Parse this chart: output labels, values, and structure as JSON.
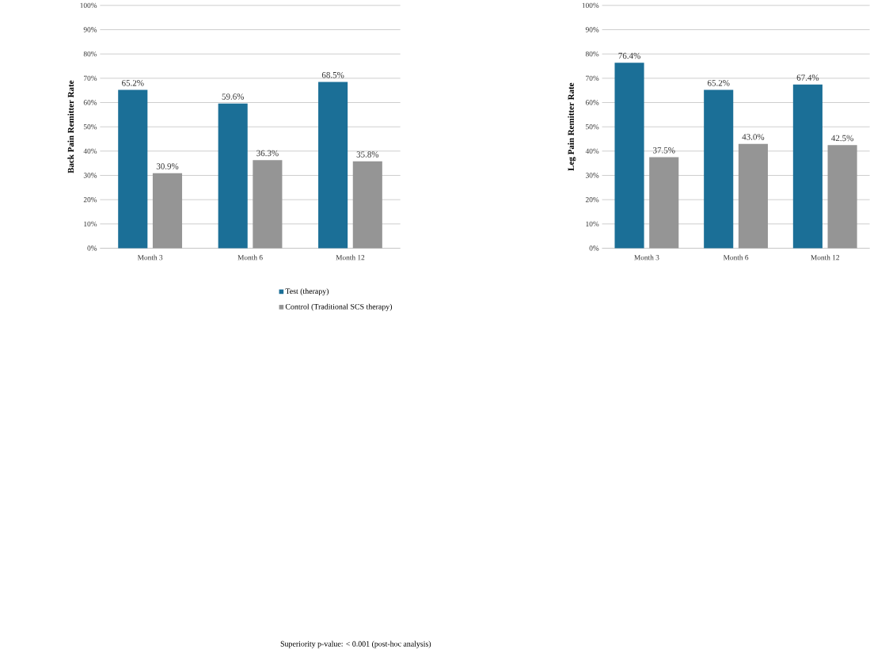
{
  "chart_data": [
    {
      "type": "bar",
      "ylabel": "Back Pain Remitter Rate",
      "categories": [
        "Month 3",
        "Month 6",
        "Month 12"
      ],
      "series": [
        {
          "name": "Test (therapy)",
          "color": "#1b6f97",
          "values": [
            65.2,
            59.6,
            68.5
          ],
          "value_labels": [
            "65.2%",
            "59.6%",
            "68.5%"
          ]
        },
        {
          "name": "Control (Traditional SCS therapy)",
          "color": "#959595",
          "values": [
            30.9,
            36.3,
            35.8
          ],
          "value_labels": [
            "30.9%",
            "36.3%",
            "35.8%"
          ]
        }
      ],
      "ylim": [
        0,
        100
      ],
      "yticks": [
        {
          "value": 0,
          "label": "0%"
        },
        {
          "value": 10,
          "label": "10%"
        },
        {
          "value": 20,
          "label": "20%"
        },
        {
          "value": 30,
          "label": "30%"
        },
        {
          "value": 40,
          "label": "40%"
        },
        {
          "value": 50,
          "label": "50%"
        },
        {
          "value": 60,
          "label": "60%"
        },
        {
          "value": 70,
          "label": "70%"
        },
        {
          "value": 80,
          "label": "80%"
        },
        {
          "value": 90,
          "label": "90%"
        },
        {
          "value": 100,
          "label": "100%"
        }
      ],
      "grid": "y",
      "legend": "bottom",
      "annotations": [
        "Superiority p-value: < 0.001 (post-hoc analysis)"
      ]
    },
    {
      "type": "bar",
      "ylabel": "Leg Pain Remitter Rate",
      "categories": [
        "Month 3",
        "Month 6",
        "Month 12"
      ],
      "series": [
        {
          "color": "#1b6f97",
          "values": [
            76.4,
            65.2,
            67.4
          ],
          "value_labels": [
            "76.4%",
            "65.2%",
            "67.4%"
          ]
        },
        {
          "color": "#959595",
          "values": [
            37.5,
            43.0,
            42.5
          ],
          "value_labels": [
            "37.5%",
            "43.0%",
            "42.5%"
          ]
        }
      ],
      "ylim": [
        0,
        100
      ],
      "yticks": [
        {
          "value": 0,
          "label": "0%"
        },
        {
          "value": 10,
          "label": "10%"
        },
        {
          "value": 20,
          "label": "20%"
        },
        {
          "value": 30,
          "label": "30%"
        },
        {
          "value": 40,
          "label": "40%"
        },
        {
          "value": 50,
          "label": "50%"
        },
        {
          "value": 60,
          "label": "60%"
        },
        {
          "value": 70,
          "label": "70%"
        },
        {
          "value": 80,
          "label": "80%"
        },
        {
          "value": 90,
          "label": "90%"
        },
        {
          "value": 100,
          "label": "100%"
        }
      ],
      "grid": "y"
    }
  ]
}
